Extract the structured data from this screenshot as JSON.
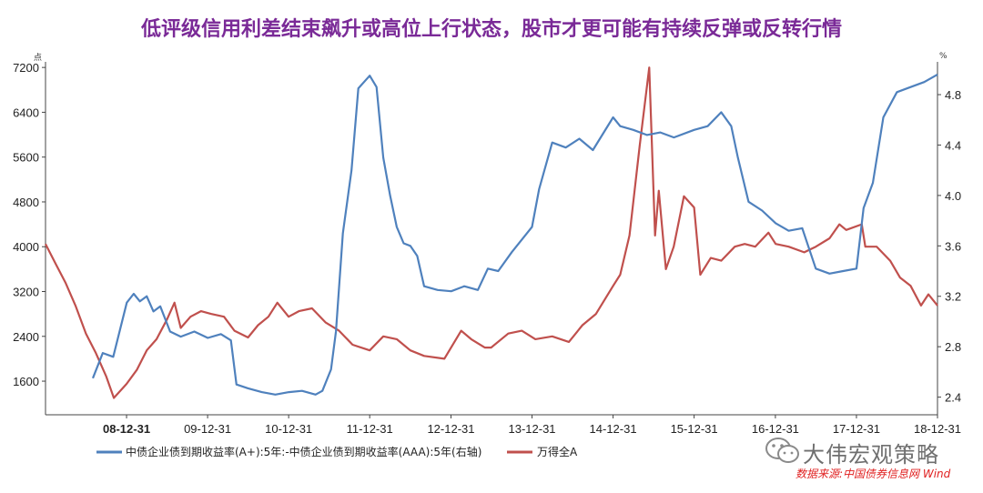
{
  "title": "低评级信用利差结束飙升或高位上行状态，股市才更可能有持续反弹或反转行情",
  "chart_data": {
    "type": "line",
    "left_axis": {
      "unit": "点",
      "ticks": [
        1600,
        2400,
        3200,
        4000,
        4800,
        5600,
        6400,
        7200
      ],
      "range": [
        1000,
        7300
      ]
    },
    "right_axis": {
      "unit": "%",
      "ticks": [
        2.4,
        2.8,
        3.2,
        3.6,
        4.0,
        4.4,
        4.8
      ],
      "range": [
        2.26,
        5.06
      ]
    },
    "x_range": [
      "2008-01-01",
      "2018-12-31"
    ],
    "x_ticks": [
      "08-12-31",
      "09-12-31",
      "10-12-31",
      "11-12-31",
      "12-12-31",
      "13-12-31",
      "14-12-31",
      "15-12-31",
      "16-12-31",
      "17-12-31",
      "18-12-31"
    ],
    "series": [
      {
        "name": "中债企业债到期收益率(A+):5年:-中债企业债到期收益率(AAA):5年(右轴)",
        "axis": "right",
        "color": "#4f81bd",
        "points": [
          [
            "2008-08-01",
            2.55
          ],
          [
            "2008-09-15",
            2.75
          ],
          [
            "2008-11-01",
            2.72
          ],
          [
            "2009-01-01",
            3.15
          ],
          [
            "2009-02-01",
            3.22
          ],
          [
            "2009-03-01",
            3.16
          ],
          [
            "2009-04-01",
            3.2
          ],
          [
            "2009-05-01",
            3.08
          ],
          [
            "2009-06-01",
            3.12
          ],
          [
            "2009-07-15",
            2.92
          ],
          [
            "2009-09-01",
            2.88
          ],
          [
            "2009-11-01",
            2.92
          ],
          [
            "2010-01-01",
            2.87
          ],
          [
            "2010-03-01",
            2.9
          ],
          [
            "2010-04-15",
            2.85
          ],
          [
            "2010-05-10",
            2.5
          ],
          [
            "2010-07-01",
            2.47
          ],
          [
            "2010-09-01",
            2.44
          ],
          [
            "2010-11-01",
            2.42
          ],
          [
            "2011-01-01",
            2.44
          ],
          [
            "2011-03-01",
            2.45
          ],
          [
            "2011-05-01",
            2.42
          ],
          [
            "2011-06-01",
            2.45
          ],
          [
            "2011-07-10",
            2.62
          ],
          [
            "2011-08-01",
            2.92
          ],
          [
            "2011-09-01",
            3.7
          ],
          [
            "2011-10-10",
            4.2
          ],
          [
            "2011-11-10",
            4.85
          ],
          [
            "2011-12-31",
            4.95
          ],
          [
            "2012-01-31",
            4.86
          ],
          [
            "2012-03-01",
            4.3
          ],
          [
            "2012-04-01",
            4.0
          ],
          [
            "2012-05-01",
            3.75
          ],
          [
            "2012-06-01",
            3.62
          ],
          [
            "2012-07-01",
            3.6
          ],
          [
            "2012-08-01",
            3.52
          ],
          [
            "2012-09-01",
            3.28
          ],
          [
            "2012-11-01",
            3.25
          ],
          [
            "2013-01-01",
            3.24
          ],
          [
            "2013-03-01",
            3.28
          ],
          [
            "2013-05-01",
            3.25
          ],
          [
            "2013-06-15",
            3.42
          ],
          [
            "2013-08-01",
            3.4
          ],
          [
            "2013-10-01",
            3.55
          ],
          [
            "2013-12-31",
            3.75
          ],
          [
            "2014-02-01",
            4.05
          ],
          [
            "2014-04-01",
            4.42
          ],
          [
            "2014-06-01",
            4.38
          ],
          [
            "2014-08-01",
            4.45
          ],
          [
            "2014-10-01",
            4.36
          ],
          [
            "2014-12-31",
            4.62
          ],
          [
            "2015-02-01",
            4.55
          ],
          [
            "2015-04-01",
            4.52
          ],
          [
            "2015-06-01",
            4.48
          ],
          [
            "2015-08-01",
            4.5
          ],
          [
            "2015-10-01",
            4.46
          ],
          [
            "2015-12-31",
            4.52
          ],
          [
            "2016-03-01",
            4.55
          ],
          [
            "2016-05-01",
            4.66
          ],
          [
            "2016-06-15",
            4.55
          ],
          [
            "2016-07-15",
            4.3
          ],
          [
            "2016-09-01",
            3.95
          ],
          [
            "2016-11-01",
            3.88
          ],
          [
            "2017-01-01",
            3.78
          ],
          [
            "2017-03-01",
            3.72
          ],
          [
            "2017-05-01",
            3.74
          ],
          [
            "2017-07-01",
            3.42
          ],
          [
            "2017-09-01",
            3.38
          ],
          [
            "2017-11-01",
            3.4
          ],
          [
            "2017-12-31",
            3.42
          ],
          [
            "2018-02-01",
            3.9
          ],
          [
            "2018-03-15",
            4.1
          ],
          [
            "2018-05-01",
            4.62
          ],
          [
            "2018-07-01",
            4.82
          ],
          [
            "2018-09-01",
            4.86
          ],
          [
            "2018-11-01",
            4.9
          ],
          [
            "2018-12-31",
            4.96
          ]
        ]
      },
      {
        "name": "万得全A",
        "axis": "left",
        "color": "#c0504d",
        "points": [
          [
            "2008-01-01",
            4050
          ],
          [
            "2008-02-15",
            3700
          ],
          [
            "2008-04-01",
            3350
          ],
          [
            "2008-05-15",
            2950
          ],
          [
            "2008-07-01",
            2450
          ],
          [
            "2008-08-15",
            2100
          ],
          [
            "2008-10-01",
            1680
          ],
          [
            "2008-11-04",
            1300
          ],
          [
            "2008-12-31",
            1550
          ],
          [
            "2009-02-15",
            1800
          ],
          [
            "2009-04-01",
            2150
          ],
          [
            "2009-05-15",
            2350
          ],
          [
            "2009-07-01",
            2700
          ],
          [
            "2009-08-04",
            3000
          ],
          [
            "2009-09-01",
            2550
          ],
          [
            "2009-10-15",
            2750
          ],
          [
            "2009-12-01",
            2850
          ],
          [
            "2010-01-15",
            2800
          ],
          [
            "2010-03-15",
            2750
          ],
          [
            "2010-05-01",
            2500
          ],
          [
            "2010-07-01",
            2380
          ],
          [
            "2010-08-15",
            2600
          ],
          [
            "2010-10-01",
            2750
          ],
          [
            "2010-11-10",
            3000
          ],
          [
            "2010-12-31",
            2750
          ],
          [
            "2011-02-15",
            2850
          ],
          [
            "2011-04-15",
            2900
          ],
          [
            "2011-06-15",
            2650
          ],
          [
            "2011-08-15",
            2500
          ],
          [
            "2011-10-15",
            2250
          ],
          [
            "2011-12-31",
            2150
          ],
          [
            "2012-03-01",
            2400
          ],
          [
            "2012-05-01",
            2350
          ],
          [
            "2012-07-01",
            2150
          ],
          [
            "2012-09-01",
            2050
          ],
          [
            "2012-12-01",
            2000
          ],
          [
            "2013-02-15",
            2500
          ],
          [
            "2013-04-01",
            2350
          ],
          [
            "2013-06-01",
            2200
          ],
          [
            "2013-06-30",
            2200
          ],
          [
            "2013-09-15",
            2450
          ],
          [
            "2013-11-15",
            2500
          ],
          [
            "2014-01-15",
            2350
          ],
          [
            "2014-04-01",
            2400
          ],
          [
            "2014-06-15",
            2300
          ],
          [
            "2014-08-15",
            2600
          ],
          [
            "2014-10-15",
            2800
          ],
          [
            "2014-12-31",
            3300
          ],
          [
            "2015-02-01",
            3500
          ],
          [
            "2015-03-15",
            4200
          ],
          [
            "2015-04-30",
            5800
          ],
          [
            "2015-06-12",
            7200
          ],
          [
            "2015-07-08",
            4200
          ],
          [
            "2015-07-25",
            5000
          ],
          [
            "2015-08-26",
            3600
          ],
          [
            "2015-09-30",
            4000
          ],
          [
            "2015-11-15",
            4900
          ],
          [
            "2015-12-31",
            4700
          ],
          [
            "2016-01-28",
            3500
          ],
          [
            "2016-03-15",
            3800
          ],
          [
            "2016-05-01",
            3750
          ],
          [
            "2016-07-01",
            4000
          ],
          [
            "2016-08-15",
            4050
          ],
          [
            "2016-10-01",
            4000
          ],
          [
            "2016-11-30",
            4250
          ],
          [
            "2017-01-01",
            4050
          ],
          [
            "2017-03-01",
            4000
          ],
          [
            "2017-05-10",
            3900
          ],
          [
            "2017-07-01",
            4000
          ],
          [
            "2017-09-01",
            4150
          ],
          [
            "2017-10-15",
            4400
          ],
          [
            "2017-11-15",
            4300
          ],
          [
            "2018-01-24",
            4400
          ],
          [
            "2018-02-09",
            4000
          ],
          [
            "2018-04-01",
            4000
          ],
          [
            "2018-06-01",
            3750
          ],
          [
            "2018-07-15",
            3450
          ],
          [
            "2018-09-01",
            3300
          ],
          [
            "2018-10-18",
            2950
          ],
          [
            "2018-11-20",
            3150
          ],
          [
            "2018-12-31",
            2950
          ]
        ]
      }
    ]
  },
  "legend": {
    "spread_label": "中债企业债到期收益率(A+):5年:-中债企业债到期收益率(AAA):5年(右轴)",
    "index_label": "万得全A"
  },
  "watermark": {
    "name": "大伟宏观策略",
    "source": "数据来源:中国债券信息网 Wind"
  }
}
